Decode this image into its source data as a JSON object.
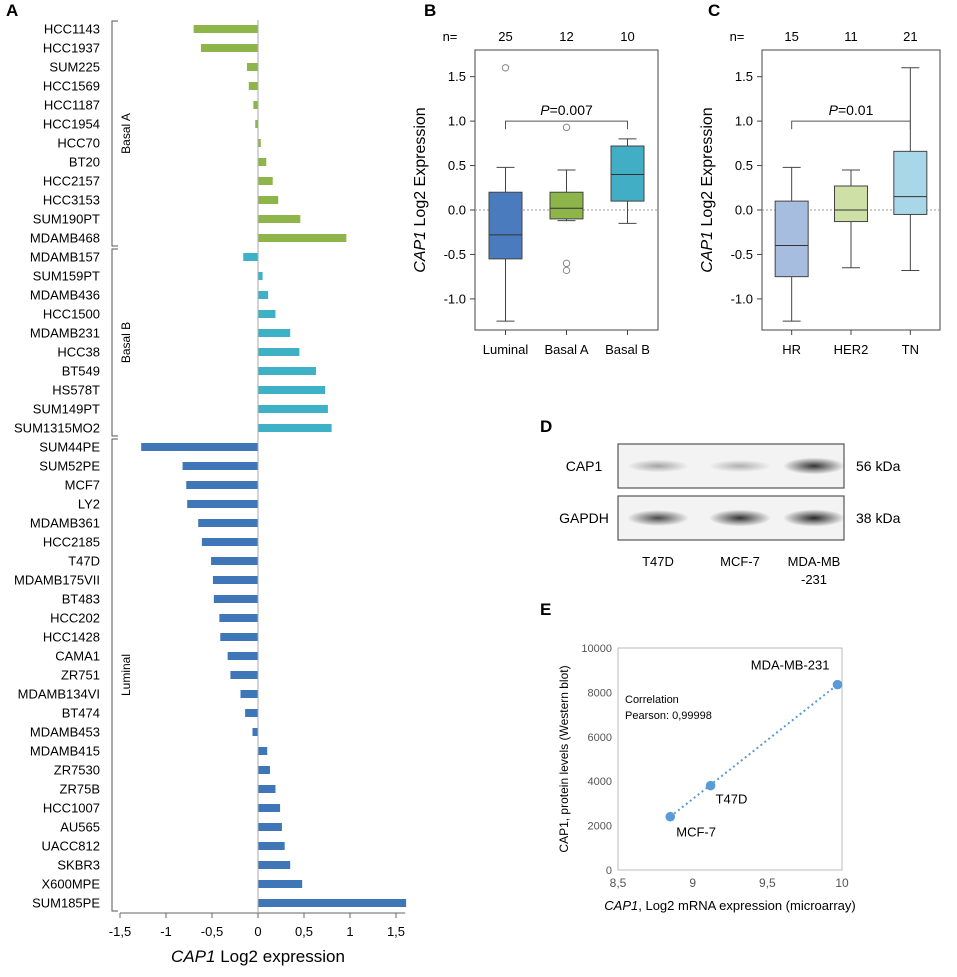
{
  "colors": {
    "basal_a": "#8db54a",
    "basal_b": "#3fb1c7",
    "luminal": "#3f76b8",
    "box_luminal": "#4a7bbf",
    "box_basal_a": "#8db54a",
    "box_basal_b": "#41aec6",
    "box_hr": "#a6bde0",
    "box_her2": "#cfe0a6",
    "box_tn": "#a8d8e8",
    "point": "#5b9bd5"
  },
  "chart_data": [
    {
      "panel": "A",
      "type": "bar",
      "orientation": "horizontal",
      "title": "",
      "xlabel_italic": "CAP1",
      "xlabel_rest": " Log2 expression",
      "xlim": [
        -1.5,
        1.6
      ],
      "ticks": [
        -1.5,
        -1,
        -0.5,
        0,
        0.5,
        1,
        1.5
      ],
      "tick_labels": [
        "-1,5",
        "-1",
        "-0,5",
        "0",
        "0,5",
        "1",
        "1,5"
      ],
      "groups": [
        {
          "name": "Basal A",
          "key": "basal_a",
          "categories": [
            "HCC1143",
            "HCC1937",
            "SUM225",
            "HCC1569",
            "HCC1187",
            "HCC1954",
            "HCC70",
            "BT20",
            "HCC2157",
            "HCC3153",
            "SUM190PT",
            "MDAMB468"
          ],
          "values": [
            -0.7,
            -0.62,
            -0.12,
            -0.1,
            -0.05,
            -0.03,
            0.03,
            0.09,
            0.16,
            0.22,
            0.46,
            0.96
          ]
        },
        {
          "name": "Basal B",
          "key": "basal_b",
          "categories": [
            "MDAMB157",
            "SUM159PT",
            "MDAMB436",
            "HCC1500",
            "MDAMB231",
            "HCC38",
            "BT549",
            "HS578T",
            "SUM149PT",
            "SUM1315MO2"
          ],
          "values": [
            -0.16,
            0.05,
            0.11,
            0.19,
            0.35,
            0.45,
            0.63,
            0.73,
            0.76,
            0.8
          ]
        },
        {
          "name": "Luminal",
          "key": "luminal",
          "categories": [
            "SUM44PE",
            "SUM52PE",
            "MCF7",
            "LY2",
            "MDAMB361",
            "HCC2185",
            "T47D",
            "MDAMB175VII",
            "BT483",
            "HCC202",
            "HCC1428",
            "CAMA1",
            "ZR751",
            "MDAMB134VI",
            "BT474",
            "MDAMB453",
            "MDAMB415",
            "ZR7530",
            "ZR75B",
            "HCC1007",
            "AU565",
            "UACC812",
            "SKBR3",
            "X600MPE",
            "SUM185PE"
          ],
          "values": [
            -1.27,
            -0.82,
            -0.78,
            -0.77,
            -0.65,
            -0.61,
            -0.51,
            -0.49,
            -0.48,
            -0.42,
            -0.41,
            -0.33,
            -0.3,
            -0.19,
            -0.14,
            -0.06,
            0.1,
            0.13,
            0.19,
            0.24,
            0.26,
            0.29,
            0.35,
            0.48,
            1.61
          ]
        }
      ]
    },
    {
      "panel": "B",
      "type": "box",
      "ylabel_italic": "CAP1",
      "ylabel_rest": " Log2  Expression",
      "ylim": [
        -1.35,
        1.8
      ],
      "ticks": [
        -1.0,
        -0.5,
        0.0,
        0.5,
        1.0,
        1.5
      ],
      "tick_labels": [
        "-1.0",
        "-0.5",
        "0.0",
        "0.5",
        "1.0",
        "1.5"
      ],
      "n_prefix": "n=",
      "pvalue_italic": "P",
      "pvalue_rest": "=0.007",
      "pvalue_between": [
        0,
        2
      ],
      "pvalue_y": 1.0,
      "categories": [
        "Luminal",
        "Basal A",
        "Basal B"
      ],
      "n": [
        "25",
        "12",
        "10"
      ],
      "color_keys": [
        "box_luminal",
        "box_basal_a",
        "box_basal_b"
      ],
      "boxes": [
        {
          "min": -1.25,
          "q1": -0.55,
          "median": -0.28,
          "q3": 0.2,
          "max": 0.48,
          "outliers": [
            1.6
          ]
        },
        {
          "min": -0.12,
          "q1": -0.1,
          "median": 0.02,
          "q3": 0.2,
          "max": 0.45,
          "outliers": [
            0.93,
            -0.6,
            -0.68
          ]
        },
        {
          "min": -0.15,
          "q1": 0.1,
          "median": 0.4,
          "q3": 0.72,
          "max": 0.8,
          "outliers": []
        }
      ]
    },
    {
      "panel": "C",
      "type": "box",
      "ylabel_italic": "CAP1",
      "ylabel_rest": " Log2  Expression",
      "ylim": [
        -1.35,
        1.8
      ],
      "ticks": [
        -1.0,
        -0.5,
        0.0,
        0.5,
        1.0,
        1.5
      ],
      "tick_labels": [
        "-1.0",
        "-0.5",
        "0.0",
        "0.5",
        "1.0",
        "1.5"
      ],
      "n_prefix": "n=",
      "pvalue_italic": "P",
      "pvalue_rest": "=0.01",
      "pvalue_between": [
        0,
        2
      ],
      "pvalue_y": 1.0,
      "categories": [
        "HR",
        "HER2",
        "TN"
      ],
      "n": [
        "15",
        "11",
        "21"
      ],
      "color_keys": [
        "box_hr",
        "box_her2",
        "box_tn"
      ],
      "boxes": [
        {
          "min": -1.25,
          "q1": -0.75,
          "median": -0.4,
          "q3": 0.1,
          "max": 0.48,
          "outliers": []
        },
        {
          "min": -0.65,
          "q1": -0.13,
          "median": 0.0,
          "q3": 0.27,
          "max": 0.45,
          "outliers": []
        },
        {
          "min": -0.68,
          "q1": -0.05,
          "median": 0.15,
          "q3": 0.66,
          "max": 1.6,
          "outliers": []
        }
      ]
    },
    {
      "panel": "E",
      "type": "scatter",
      "xlabel_italic": "CAP1",
      "xlabel_rest": ", Log2 mRNA expression (microarray)",
      "ylabel": "CAP1, protein levels (Western blot)",
      "xlim": [
        8.5,
        10
      ],
      "ylim": [
        0,
        10000
      ],
      "xticks": [
        8.5,
        9,
        9.5,
        10
      ],
      "xtick_labels": [
        "8,5",
        "9",
        "9,5",
        "10"
      ],
      "yticks": [
        0,
        2000,
        4000,
        6000,
        8000,
        10000
      ],
      "ytick_labels": [
        "0",
        "2000",
        "4000",
        "6000",
        "8000",
        "10000"
      ],
      "annotation_line1": "Correlation",
      "annotation_line2": "Pearson: 0,99998",
      "points": [
        {
          "label": "MCF-7",
          "x": 8.85,
          "y": 2400
        },
        {
          "label": "T47D",
          "x": 9.12,
          "y": 3800
        },
        {
          "label": "MDA-MB-231",
          "x": 9.97,
          "y": 8350
        }
      ]
    }
  ],
  "western_blot": {
    "panel": "D",
    "rows": [
      {
        "label": "CAP1",
        "kda": "56 kDa",
        "intensity": [
          0.35,
          0.3,
          0.85
        ]
      },
      {
        "label": "GAPDH",
        "kda": "38 kDa",
        "intensity": [
          0.75,
          0.85,
          0.9
        ]
      }
    ],
    "lanes": [
      {
        "line1": "T47D",
        "line2": ""
      },
      {
        "line1": "MCF-7",
        "line2": ""
      },
      {
        "line1": "MDA-MB",
        "line2": "-231"
      }
    ]
  }
}
